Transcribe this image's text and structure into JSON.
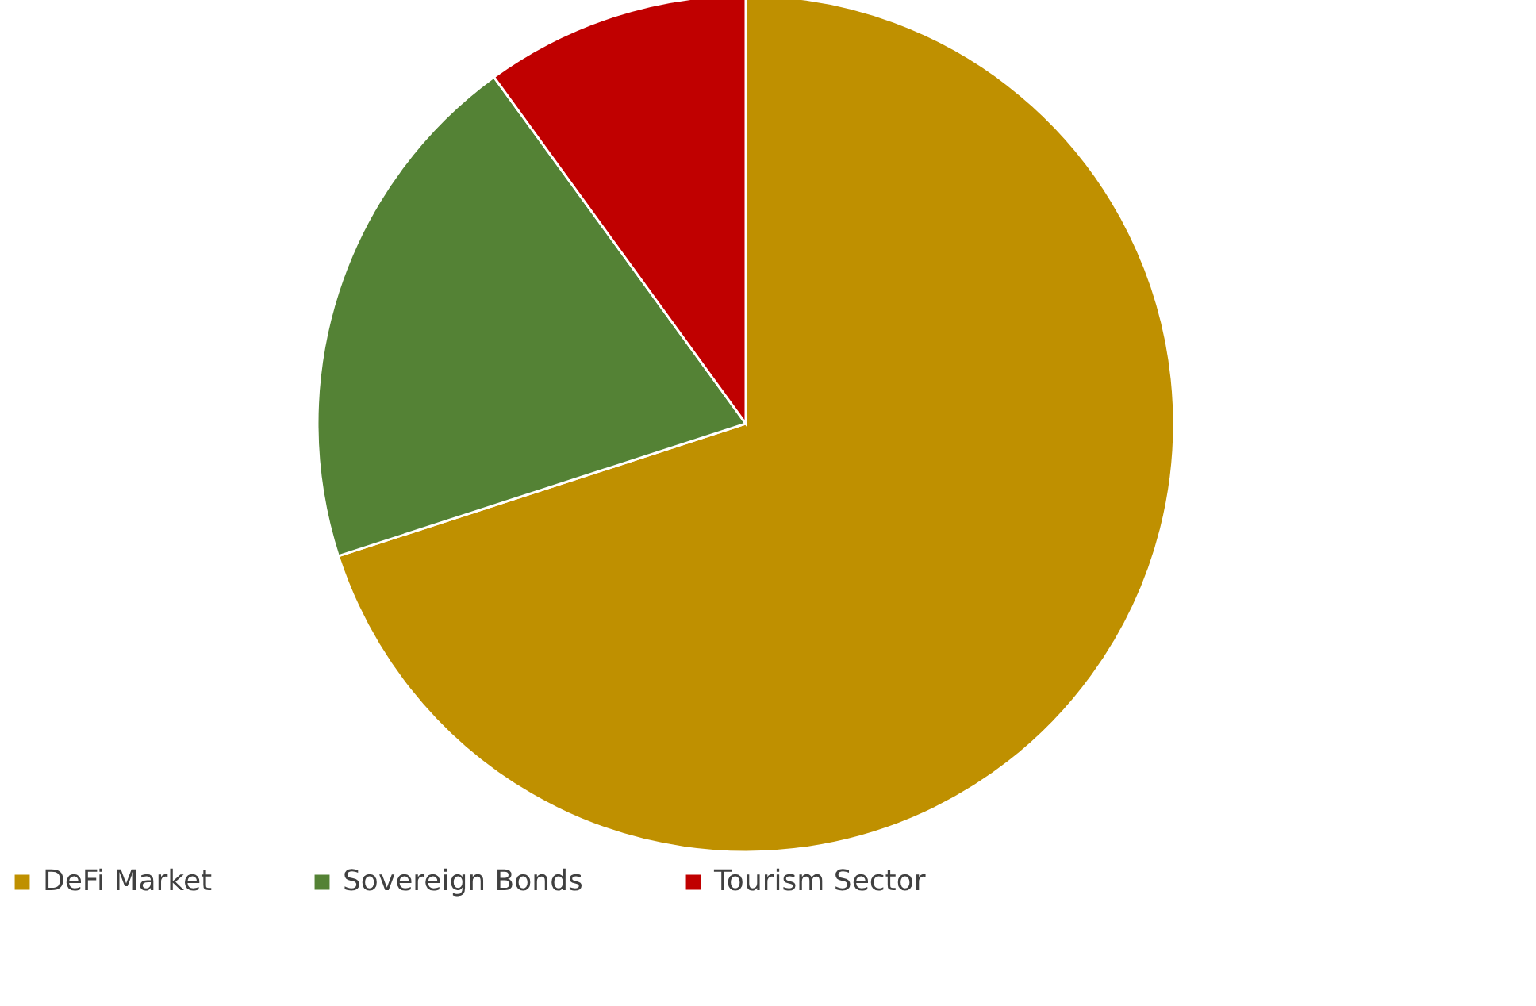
{
  "chart_data": {
    "type": "pie",
    "categories": [
      "DeFi Market",
      "Sovereign Bonds",
      "Tourism Sector"
    ],
    "values": [
      70,
      20,
      10
    ],
    "colors": [
      "#bf9000",
      "#548235",
      "#c00000"
    ],
    "legend": "bottom"
  }
}
